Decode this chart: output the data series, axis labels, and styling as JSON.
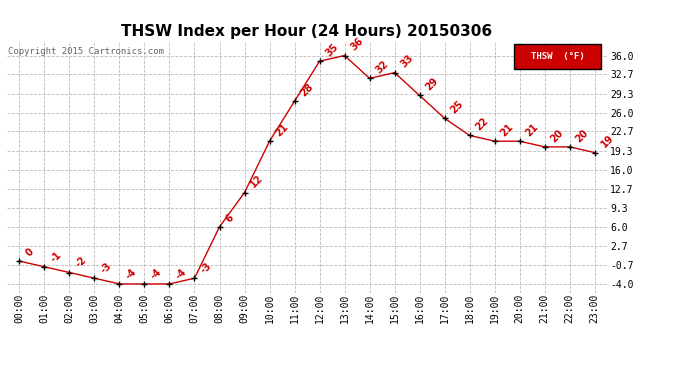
{
  "title": "THSW Index per Hour (24 Hours) 20150306",
  "copyright": "Copyright 2015 Cartronics.com",
  "legend_label": "THSW  (°F)",
  "hours": [
    0,
    1,
    2,
    3,
    4,
    5,
    6,
    7,
    8,
    9,
    10,
    11,
    12,
    13,
    14,
    15,
    16,
    17,
    18,
    19,
    20,
    21,
    22,
    23
  ],
  "values": [
    0,
    -1,
    -2,
    -3,
    -4,
    -4,
    -4,
    -3,
    6,
    12,
    21,
    28,
    35,
    36,
    32,
    33,
    29,
    25,
    22,
    21,
    21,
    20,
    20,
    19
  ],
  "yticks": [
    -4.0,
    -0.7,
    2.7,
    6.0,
    9.3,
    12.7,
    16.0,
    19.3,
    22.7,
    26.0,
    29.3,
    32.7,
    36.0
  ],
  "ylim": [
    -5.5,
    38.5
  ],
  "line_color": "#cc0000",
  "marker_color": "#000000",
  "bg_color": "#ffffff",
  "grid_color": "#bbbbbb",
  "title_fontsize": 11,
  "label_fontsize": 7,
  "annotation_fontsize": 7,
  "copyright_fontsize": 6.5,
  "legend_bg": "#cc0000",
  "legend_text_color": "#ffffff"
}
